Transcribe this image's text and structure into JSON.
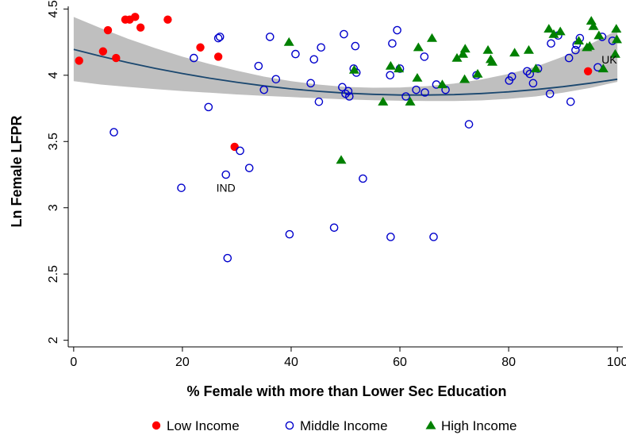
{
  "chart_data": {
    "type": "scatter",
    "xlabel": "% Female with more than Lower Sec Education",
    "ylabel": "Ln Female LFPR",
    "xlim": [
      -1,
      101
    ],
    "ylim": [
      1.95,
      4.52
    ],
    "xticks": [
      0,
      20,
      40,
      60,
      80,
      100
    ],
    "yticks": [
      2,
      2.5,
      3,
      3.5,
      4,
      4.5
    ],
    "xtick_labels": [
      "0",
      "20",
      "40",
      "60",
      "80",
      "100"
    ],
    "ytick_labels": [
      "2",
      "2.5",
      "3",
      "3.5",
      "4",
      "4.5"
    ],
    "grid": false,
    "legend_position": "bottom",
    "series": [
      {
        "name": "Low Income",
        "marker": "filled-circle",
        "color": "#ff0000",
        "points": [
          [
            1,
            4.11
          ],
          [
            5.4,
            4.18
          ],
          [
            6.3,
            4.34
          ],
          [
            7.8,
            4.13
          ],
          [
            9.5,
            4.42
          ],
          [
            10.3,
            4.42
          ],
          [
            11.3,
            4.44
          ],
          [
            12.3,
            4.36
          ],
          [
            17.3,
            4.42
          ],
          [
            23.3,
            4.21
          ],
          [
            26.6,
            4.14
          ],
          [
            29.6,
            3.46
          ],
          [
            94.6,
            4.03
          ]
        ]
      },
      {
        "name": "Middle Income",
        "marker": "hollow-circle",
        "color": "#0000cc",
        "points": [
          [
            7.4,
            3.57
          ],
          [
            19.8,
            3.15
          ],
          [
            22.1,
            4.13
          ],
          [
            24.8,
            3.76
          ],
          [
            26.6,
            4.28
          ],
          [
            26.9,
            4.29
          ],
          [
            28.0,
            3.25
          ],
          [
            28.3,
            2.62
          ],
          [
            30.6,
            3.43
          ],
          [
            32.3,
            3.3
          ],
          [
            34.0,
            4.07
          ],
          [
            35.0,
            3.89
          ],
          [
            36.1,
            4.29
          ],
          [
            37.2,
            3.97
          ],
          [
            39.7,
            2.8
          ],
          [
            40.8,
            4.16
          ],
          [
            43.6,
            3.94
          ],
          [
            44.2,
            4.12
          ],
          [
            45.1,
            3.8
          ],
          [
            45.5,
            4.21
          ],
          [
            47.9,
            2.85
          ],
          [
            49.4,
            3.91
          ],
          [
            49.7,
            4.31
          ],
          [
            50.0,
            3.86
          ],
          [
            50.5,
            3.88
          ],
          [
            50.7,
            3.84
          ],
          [
            51.5,
            4.05
          ],
          [
            51.8,
            4.22
          ],
          [
            52.0,
            4.02
          ],
          [
            53.2,
            3.22
          ],
          [
            58.3,
            2.78
          ],
          [
            58.2,
            4.0
          ],
          [
            58.6,
            4.24
          ],
          [
            59.5,
            4.34
          ],
          [
            60.0,
            4.05
          ],
          [
            61.1,
            3.84
          ],
          [
            63.0,
            3.89
          ],
          [
            64.5,
            4.14
          ],
          [
            64.6,
            3.87
          ],
          [
            66.2,
            2.78
          ],
          [
            66.7,
            3.93
          ],
          [
            68.4,
            3.89
          ],
          [
            72.7,
            3.63
          ],
          [
            74.1,
            4.0
          ],
          [
            80.1,
            3.96
          ],
          [
            80.6,
            3.99
          ],
          [
            83.4,
            4.03
          ],
          [
            83.9,
            4.01
          ],
          [
            84.5,
            3.94
          ],
          [
            85.4,
            4.05
          ],
          [
            87.6,
            3.86
          ],
          [
            87.8,
            4.24
          ],
          [
            89.1,
            4.3
          ],
          [
            91.1,
            4.13
          ],
          [
            91.4,
            3.8
          ],
          [
            92.3,
            4.19
          ],
          [
            92.5,
            4.23
          ],
          [
            93.1,
            4.28
          ],
          [
            96.4,
            4.06
          ],
          [
            97.2,
            4.29
          ],
          [
            99.1,
            4.26
          ]
        ]
      },
      {
        "name": "High Income",
        "marker": "filled-triangle",
        "color": "#008000",
        "points": [
          [
            39.6,
            4.25
          ],
          [
            49.2,
            3.36
          ],
          [
            51.6,
            4.04
          ],
          [
            56.9,
            3.8
          ],
          [
            58.3,
            4.07
          ],
          [
            59.8,
            4.05
          ],
          [
            61.9,
            3.8
          ],
          [
            63.2,
            3.98
          ],
          [
            63.4,
            4.21
          ],
          [
            65.9,
            4.28
          ],
          [
            67.8,
            3.93
          ],
          [
            70.5,
            4.13
          ],
          [
            71.6,
            4.16
          ],
          [
            71.9,
            3.97
          ],
          [
            72.0,
            4.2
          ],
          [
            74.3,
            4.01
          ],
          [
            76.2,
            4.19
          ],
          [
            76.7,
            4.12
          ],
          [
            77.0,
            4.1
          ],
          [
            81.1,
            4.17
          ],
          [
            83.7,
            4.19
          ],
          [
            85.0,
            4.05
          ],
          [
            87.4,
            4.35
          ],
          [
            88.3,
            4.31
          ],
          [
            89.5,
            4.33
          ],
          [
            92.9,
            4.26
          ],
          [
            94.4,
            4.21
          ],
          [
            94.9,
            4.22
          ],
          [
            95.2,
            4.41
          ],
          [
            95.6,
            4.37
          ],
          [
            96.6,
            4.3
          ],
          [
            97.4,
            4.05
          ],
          [
            99.6,
            4.16
          ],
          [
            99.8,
            4.35
          ],
          [
            99.9,
            4.27
          ]
        ]
      }
    ],
    "fit": {
      "type": "quadratic",
      "color": "#1a476f",
      "ci_color": "#bfbfbf",
      "curve": [
        [
          0,
          4.195
        ],
        [
          5,
          4.143
        ],
        [
          10,
          4.095
        ],
        [
          15,
          4.052
        ],
        [
          20,
          4.013
        ],
        [
          25,
          3.978
        ],
        [
          30,
          3.947
        ],
        [
          35,
          3.92
        ],
        [
          40,
          3.897
        ],
        [
          45,
          3.879
        ],
        [
          50,
          3.865
        ],
        [
          55,
          3.856
        ],
        [
          60,
          3.851
        ],
        [
          65,
          3.851
        ],
        [
          70,
          3.854
        ],
        [
          75,
          3.862
        ],
        [
          80,
          3.875
        ],
        [
          85,
          3.892
        ],
        [
          90,
          3.914
        ],
        [
          95,
          3.94
        ],
        [
          100,
          3.97
        ]
      ],
      "ci_upper": [
        [
          0,
          4.44
        ],
        [
          5,
          4.355
        ],
        [
          10,
          4.275
        ],
        [
          15,
          4.205
        ],
        [
          20,
          4.14
        ],
        [
          25,
          4.085
        ],
        [
          30,
          4.035
        ],
        [
          35,
          3.99
        ],
        [
          40,
          3.955
        ],
        [
          45,
          3.93
        ],
        [
          50,
          3.912
        ],
        [
          55,
          3.906
        ],
        [
          60,
          3.908
        ],
        [
          65,
          3.918
        ],
        [
          70,
          3.938
        ],
        [
          75,
          3.968
        ],
        [
          80,
          4.01
        ],
        [
          85,
          4.065
        ],
        [
          90,
          4.14
        ],
        [
          95,
          4.235
        ],
        [
          100,
          4.34
        ]
      ],
      "ci_lower": [
        [
          0,
          3.955
        ],
        [
          5,
          3.93
        ],
        [
          10,
          3.912
        ],
        [
          15,
          3.895
        ],
        [
          20,
          3.88
        ],
        [
          25,
          3.868
        ],
        [
          30,
          3.855
        ],
        [
          35,
          3.845
        ],
        [
          40,
          3.835
        ],
        [
          45,
          3.826
        ],
        [
          50,
          3.818
        ],
        [
          55,
          3.812
        ],
        [
          60,
          3.808
        ],
        [
          65,
          3.806
        ],
        [
          70,
          3.806
        ],
        [
          75,
          3.81
        ],
        [
          80,
          3.822
        ],
        [
          85,
          3.84
        ],
        [
          90,
          3.868
        ],
        [
          95,
          3.905
        ],
        [
          100,
          3.95
        ]
      ]
    },
    "annotations": [
      {
        "text": "IND",
        "x": 28.0,
        "y": 3.15
      },
      {
        "text": "UK",
        "x": 98.5,
        "y": 4.12
      }
    ]
  }
}
